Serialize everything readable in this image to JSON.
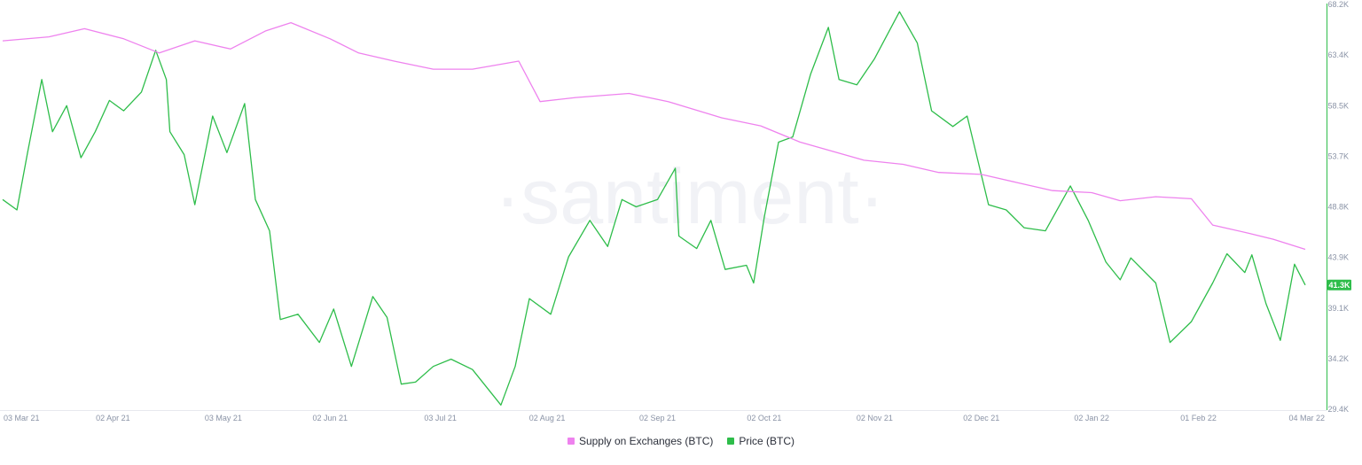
{
  "watermark": "·santiment·",
  "legend": {
    "supply_label": "Supply on Exchanges (BTC)",
    "price_label": "Price (BTC)"
  },
  "current_price_label": "41.3K",
  "colors": {
    "supply": "#ee82ee",
    "price": "#2ebd4a",
    "price_tag_bg": "#2ebd4a",
    "axis": "#e7e9ee",
    "watermark": "#f1f2f6"
  },
  "chart_data": {
    "type": "line",
    "x_axis": {
      "type": "date",
      "range": [
        "2021-03-02",
        "2022-03-04"
      ],
      "tick_labels": [
        "03 Mar 21",
        "02 Apr 21",
        "03 May 21",
        "02 Jun 21",
        "03 Jul 21",
        "02 Aug 21",
        "02 Sep 21",
        "02 Oct 21",
        "02 Nov 21",
        "02 Dec 21",
        "02 Jan 22",
        "01 Feb 22",
        "04 Mar 22"
      ]
    },
    "y_axis_right": {
      "series": "Price (BTC)",
      "range": [
        29400,
        68200
      ],
      "tick_labels": [
        "68.2K",
        "63.4K",
        "58.5K",
        "53.7K",
        "48.8K",
        "43.9K",
        "39.1K",
        "34.2K",
        "29.4K"
      ]
    },
    "grid": false,
    "legend_position": "bottom-center",
    "series": [
      {
        "name": "Price (BTC)",
        "color": "#2ebd4a",
        "axis": "right",
        "points": [
          [
            "2021-03-02",
            49500
          ],
          [
            "2021-03-06",
            48500
          ],
          [
            "2021-03-09",
            54000
          ],
          [
            "2021-03-13",
            61000
          ],
          [
            "2021-03-16",
            56000
          ],
          [
            "2021-03-20",
            58500
          ],
          [
            "2021-03-24",
            53500
          ],
          [
            "2021-03-28",
            56000
          ],
          [
            "2021-04-01",
            59000
          ],
          [
            "2021-04-05",
            58000
          ],
          [
            "2021-04-10",
            59800
          ],
          [
            "2021-04-14",
            63800
          ],
          [
            "2021-04-17",
            61000
          ],
          [
            "2021-04-18",
            56000
          ],
          [
            "2021-04-22",
            53800
          ],
          [
            "2021-04-25",
            49000
          ],
          [
            "2021-04-30",
            57500
          ],
          [
            "2021-05-04",
            54000
          ],
          [
            "2021-05-09",
            58700
          ],
          [
            "2021-05-12",
            49500
          ],
          [
            "2021-05-16",
            46500
          ],
          [
            "2021-05-19",
            38000
          ],
          [
            "2021-05-24",
            38500
          ],
          [
            "2021-05-30",
            35800
          ],
          [
            "2021-06-03",
            39000
          ],
          [
            "2021-06-08",
            33500
          ],
          [
            "2021-06-14",
            40200
          ],
          [
            "2021-06-18",
            38200
          ],
          [
            "2021-06-22",
            31800
          ],
          [
            "2021-06-26",
            32000
          ],
          [
            "2021-07-01",
            33500
          ],
          [
            "2021-07-06",
            34200
          ],
          [
            "2021-07-12",
            33200
          ],
          [
            "2021-07-20",
            29800
          ],
          [
            "2021-07-24",
            33500
          ],
          [
            "2021-07-28",
            40000
          ],
          [
            "2021-08-03",
            38500
          ],
          [
            "2021-08-08",
            44000
          ],
          [
            "2021-08-14",
            47500
          ],
          [
            "2021-08-19",
            45000
          ],
          [
            "2021-08-23",
            49500
          ],
          [
            "2021-08-27",
            48800
          ],
          [
            "2021-09-02",
            49500
          ],
          [
            "2021-09-07",
            52500
          ],
          [
            "2021-09-08",
            46000
          ],
          [
            "2021-09-13",
            44800
          ],
          [
            "2021-09-17",
            47500
          ],
          [
            "2021-09-21",
            42800
          ],
          [
            "2021-09-27",
            43200
          ],
          [
            "2021-09-29",
            41500
          ],
          [
            "2021-10-02",
            47800
          ],
          [
            "2021-10-06",
            55000
          ],
          [
            "2021-10-10",
            55500
          ],
          [
            "2021-10-15",
            61500
          ],
          [
            "2021-10-20",
            66000
          ],
          [
            "2021-10-23",
            61000
          ],
          [
            "2021-10-28",
            60500
          ],
          [
            "2021-11-02",
            63000
          ],
          [
            "2021-11-09",
            67500
          ],
          [
            "2021-11-14",
            64500
          ],
          [
            "2021-11-18",
            58000
          ],
          [
            "2021-11-24",
            56500
          ],
          [
            "2021-11-28",
            57500
          ],
          [
            "2021-12-04",
            49000
          ],
          [
            "2021-12-09",
            48500
          ],
          [
            "2021-12-14",
            46800
          ],
          [
            "2021-12-20",
            46500
          ],
          [
            "2021-12-27",
            50800
          ],
          [
            "2022-01-01",
            47500
          ],
          [
            "2022-01-06",
            43500
          ],
          [
            "2022-01-10",
            41800
          ],
          [
            "2022-01-13",
            43900
          ],
          [
            "2022-01-20",
            41500
          ],
          [
            "2022-01-24",
            35800
          ],
          [
            "2022-01-30",
            37800
          ],
          [
            "2022-02-05",
            41500
          ],
          [
            "2022-02-09",
            44300
          ],
          [
            "2022-02-14",
            42500
          ],
          [
            "2022-02-16",
            44200
          ],
          [
            "2022-02-20",
            39500
          ],
          [
            "2022-02-24",
            36000
          ],
          [
            "2022-02-28",
            43300
          ],
          [
            "2022-03-03",
            41300
          ]
        ]
      },
      {
        "name": "Supply on Exchanges (BTC)",
        "color": "#ee82ee",
        "axis": "hidden",
        "points": [
          [
            "2021-03-02",
            0.91
          ],
          [
            "2021-03-15",
            0.92
          ],
          [
            "2021-03-25",
            0.94
          ],
          [
            "2021-04-05",
            0.915
          ],
          [
            "2021-04-15",
            0.88
          ],
          [
            "2021-04-25",
            0.91
          ],
          [
            "2021-05-05",
            0.89
          ],
          [
            "2021-05-15",
            0.935
          ],
          [
            "2021-05-22",
            0.955
          ],
          [
            "2021-06-02",
            0.915
          ],
          [
            "2021-06-10",
            0.88
          ],
          [
            "2021-06-20",
            0.86
          ],
          [
            "2021-07-01",
            0.84
          ],
          [
            "2021-07-12",
            0.84
          ],
          [
            "2021-07-25",
            0.86
          ],
          [
            "2021-07-31",
            0.76
          ],
          [
            "2021-08-10",
            0.77
          ],
          [
            "2021-08-25",
            0.78
          ],
          [
            "2021-09-05",
            0.76
          ],
          [
            "2021-09-20",
            0.72
          ],
          [
            "2021-10-01",
            0.7
          ],
          [
            "2021-10-12",
            0.66
          ],
          [
            "2021-10-20",
            0.64
          ],
          [
            "2021-10-30",
            0.615
          ],
          [
            "2021-11-10",
            0.605
          ],
          [
            "2021-11-20",
            0.585
          ],
          [
            "2021-12-02",
            0.58
          ],
          [
            "2021-12-12",
            0.56
          ],
          [
            "2021-12-22",
            0.54
          ],
          [
            "2022-01-02",
            0.535
          ],
          [
            "2022-01-10",
            0.515
          ],
          [
            "2022-01-20",
            0.525
          ],
          [
            "2022-01-30",
            0.52
          ],
          [
            "2022-02-05",
            0.455
          ],
          [
            "2022-02-15",
            0.435
          ],
          [
            "2022-02-22",
            0.42
          ],
          [
            "2022-03-03",
            0.395
          ]
        ]
      }
    ]
  }
}
